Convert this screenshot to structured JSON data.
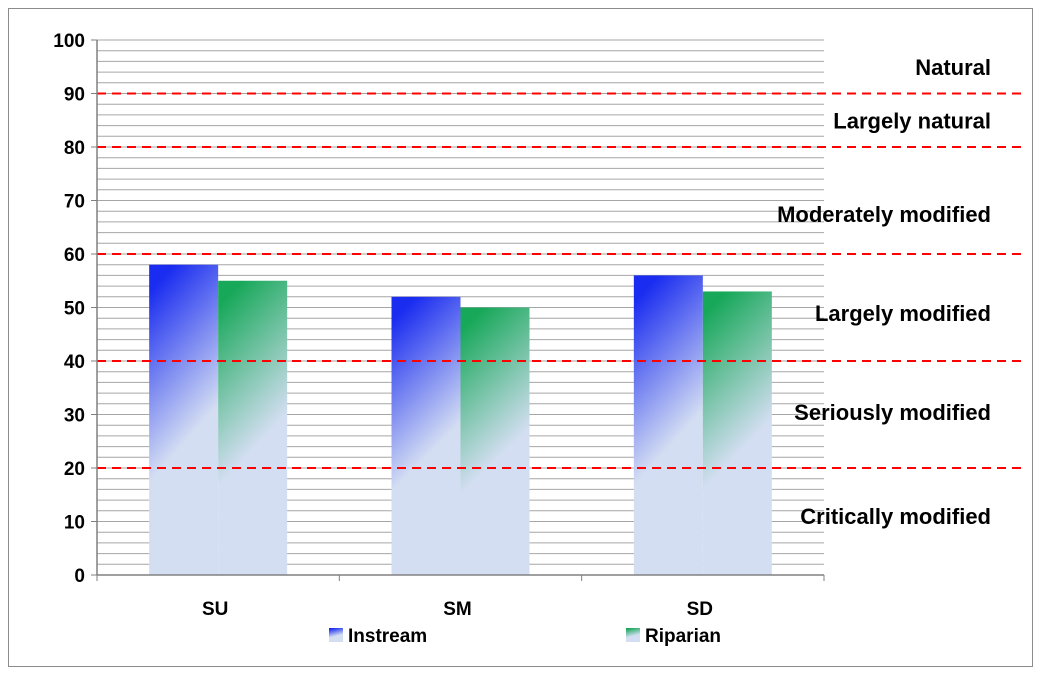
{
  "chart_data": {
    "type": "bar",
    "categories": [
      "SU",
      "SM",
      "SD"
    ],
    "series": [
      {
        "name": "Instream",
        "values": [
          58,
          52,
          56
        ],
        "color": "#1a2cf0",
        "color_light": "#d4def2"
      },
      {
        "name": "Riparian",
        "values": [
          55,
          50,
          53
        ],
        "color": "#18a85a",
        "color_light": "#d4def2"
      }
    ],
    "ylim": [
      0,
      100
    ],
    "y_ticks": [
      0,
      10,
      20,
      30,
      40,
      50,
      60,
      70,
      80,
      90,
      100
    ],
    "grid": true,
    "legend_position": "bottom",
    "thresholds": [
      {
        "value": 20,
        "color": "#ff0000"
      },
      {
        "value": 40,
        "color": "#ff0000"
      },
      {
        "value": 60,
        "color": "#ff0000"
      },
      {
        "value": 80,
        "color": "#ff0000"
      },
      {
        "value": 90,
        "color": "#ff0000"
      }
    ],
    "bands": [
      {
        "label": "Natural",
        "center": 95
      },
      {
        "label": "Largely natural",
        "center": 85
      },
      {
        "label": "Moderately modified",
        "center": 67.5
      },
      {
        "label": "Largely modified",
        "center": 49
      },
      {
        "label": "Seriously modified",
        "center": 30.5
      },
      {
        "label": "Critically modified",
        "center": 11
      }
    ],
    "xlabel": "",
    "ylabel": "",
    "title": ""
  }
}
